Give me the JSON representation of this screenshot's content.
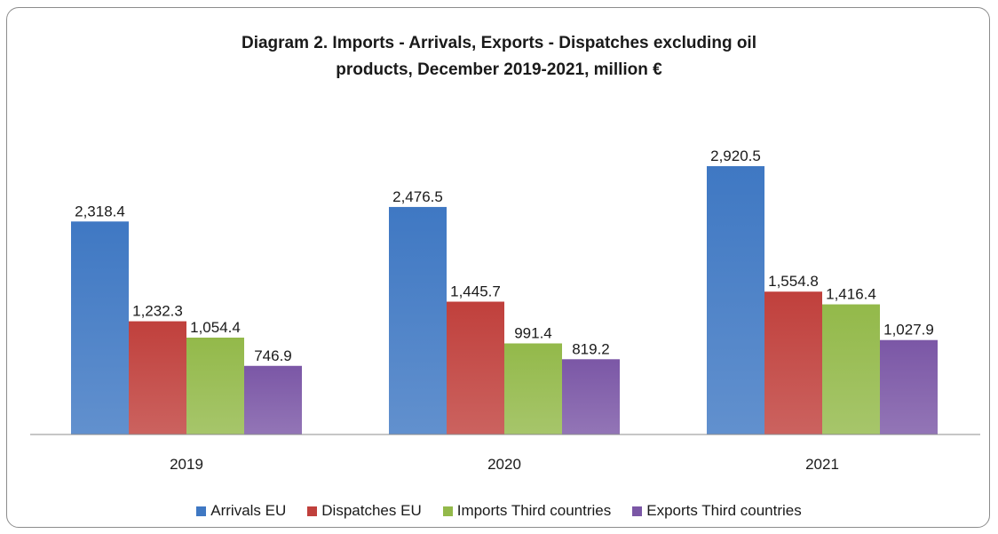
{
  "chart_data": {
    "type": "bar",
    "title": "Diagram 2. Imports - Arrivals, Exports - Dispatches excluding oil products, December 2019-2021,   million €",
    "title_lines": [
      "Diagram 2. Imports - Arrivals, Exports - Dispatches excluding oil",
      "products, December 2019-2021,   million €"
    ],
    "categories": [
      "2019",
      "2020",
      "2021"
    ],
    "series": [
      {
        "name": "Arrivals EU",
        "values": [
          2318.4,
          2476.5,
          2920.5
        ],
        "labels": [
          "2,318.4",
          "2,476.5",
          "2,920.5"
        ],
        "color": "#3f78c3"
      },
      {
        "name": "Dispatches EU",
        "values": [
          1232.3,
          1445.7,
          1554.8
        ],
        "labels": [
          "1,232.3",
          "1,445.7",
          "1,554.8"
        ],
        "color": "#c0403c"
      },
      {
        "name": "Imports Third countries",
        "values": [
          1054.4,
          991.4,
          1416.4
        ],
        "labels": [
          "1,054.4",
          "991.4",
          "1,416.4"
        ],
        "color": "#93b94a"
      },
      {
        "name": "Exports Third countries",
        "values": [
          746.9,
          819.2,
          1027.9
        ],
        "labels": [
          "746.9",
          "819.2",
          "1,027.9"
        ],
        "color": "#7b57a6"
      }
    ],
    "ylim": [
      0,
      3000
    ],
    "grid": false,
    "legend_position": "bottom"
  }
}
